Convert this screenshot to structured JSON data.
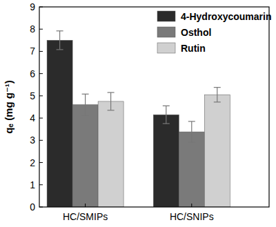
{
  "chart_data": {
    "type": "bar",
    "y_label": "qₑ (mg g⁻¹)",
    "categories": [
      "HC/SMIPs",
      "HC/SNIPs"
    ],
    "series": [
      {
        "name": "4-Hydroxycoumarin",
        "color": "#2b2b2b",
        "values": [
          7.5,
          4.15
        ],
        "errors": [
          0.42,
          0.4
        ]
      },
      {
        "name": "Osthol",
        "color": "#7a7a7a",
        "values": [
          4.6,
          3.38
        ],
        "errors": [
          0.48,
          0.47
        ]
      },
      {
        "name": "Rutin",
        "color": "#d0d0d0",
        "values": [
          4.75,
          5.05
        ],
        "errors": [
          0.4,
          0.33
        ]
      }
    ],
    "ylim": [
      0,
      9
    ],
    "yticks": [
      0,
      1,
      2,
      3,
      4,
      5,
      6,
      7,
      8,
      9
    ],
    "grid": false,
    "legend": "top-right"
  }
}
